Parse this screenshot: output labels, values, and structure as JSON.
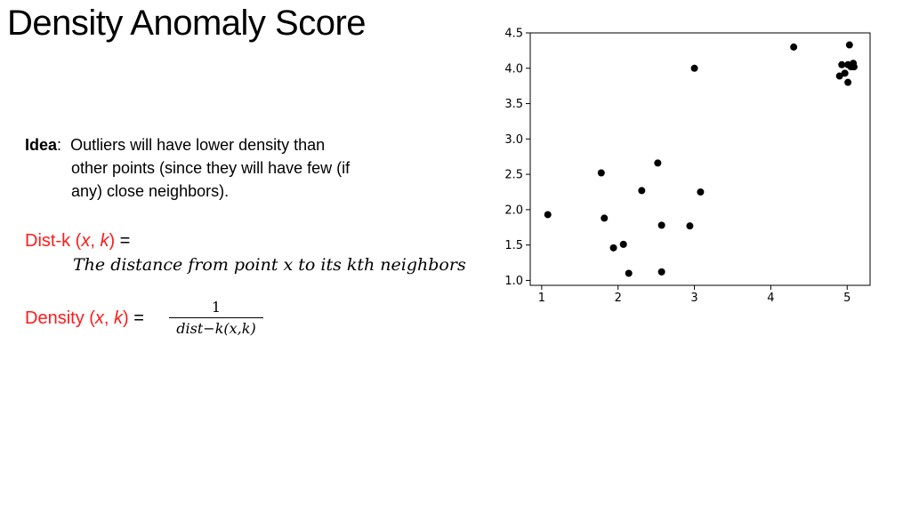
{
  "slide": {
    "title": "Density Anomaly Score",
    "idea_label": "Idea",
    "idea_sep": ":",
    "idea_lines": [
      "Outliers will have lower density than",
      "other points (since they will have few (if",
      "any) close neighbors)."
    ],
    "distk_prefix": "Dist-k (",
    "distk_x": "x",
    "distk_comma": ", ",
    "distk_k": "k",
    "distk_suffix": ")",
    "distk_eq": " =",
    "distk_formula": "The distance from point x to its kth neighbors",
    "density_prefix": "Density (",
    "density_x": "x",
    "density_comma": ", ",
    "density_k": "k",
    "density_suffix": ")",
    "density_eq": " =",
    "frac_num": "1",
    "frac_den": "dist−k(x,k)"
  },
  "colors": {
    "accent": "#ff1a1a",
    "point": "#000000"
  },
  "chart_data": {
    "type": "scatter",
    "xlim": [
      0.85,
      5.3
    ],
    "ylim": [
      0.93,
      4.5
    ],
    "xticks": [
      1,
      2,
      3,
      4,
      5
    ],
    "yticks": [
      1.0,
      1.5,
      2.0,
      2.5,
      3.0,
      3.5,
      4.0,
      4.5
    ],
    "grid": false,
    "points": [
      [
        1.08,
        1.93
      ],
      [
        1.78,
        2.52
      ],
      [
        1.82,
        1.88
      ],
      [
        1.94,
        1.46
      ],
      [
        2.07,
        1.51
      ],
      [
        2.14,
        1.1
      ],
      [
        2.31,
        2.27
      ],
      [
        2.52,
        2.66
      ],
      [
        2.57,
        1.78
      ],
      [
        2.57,
        1.12
      ],
      [
        2.94,
        1.77
      ],
      [
        3.08,
        2.25
      ],
      [
        3.0,
        4.0
      ],
      [
        4.3,
        4.3
      ],
      [
        5.03,
        4.33
      ],
      [
        4.9,
        3.89
      ],
      [
        4.93,
        4.05
      ],
      [
        4.97,
        3.93
      ],
      [
        5.01,
        4.05
      ],
      [
        5.01,
        3.8
      ],
      [
        5.05,
        4.02
      ],
      [
        5.08,
        4.07
      ],
      [
        5.09,
        4.02
      ]
    ]
  }
}
